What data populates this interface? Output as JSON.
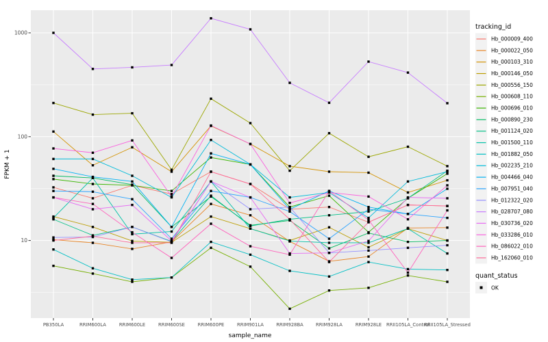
{
  "figure": {
    "y_axis": {
      "label": "FPKM + 1"
    },
    "x_axis": {
      "label": "sample_name"
    },
    "legend": {
      "tracking_title": "tracking_id",
      "quant_title": "quant_status",
      "quant_ok_label": "OK"
    }
  },
  "chart_data": {
    "type": "line",
    "title": "",
    "xlabel": "sample_name",
    "ylabel": "FPKM + 1",
    "y_scale": "log10",
    "ylim": [
      1.8,
      1700
    ],
    "y_ticks": [
      1000,
      100,
      10
    ],
    "y_minor_ticks": [
      316.23,
      31.623,
      3.1623
    ],
    "grid": true,
    "legend_position": "right",
    "panel_background": "#EBEBEB",
    "gridline_color": "#FFFFFF",
    "point_color": "#000000",
    "tick_label_color": "#4D4D4D",
    "categories": [
      "PB350LA",
      "RRIM600LA",
      "RRIM600LE",
      "RRIM600SE",
      "RRIM600PE",
      "RRIM901LA",
      "RRIM928BA",
      "RRIM928LA",
      "RRIM928LE",
      "RRII105LA_Control",
      "RRII105LA_Stressed"
    ],
    "quant_status": {
      "items": [
        "OK"
      ]
    },
    "series": [
      {
        "name": "Hb_000009_400",
        "color": "#F8766D",
        "values": [
          32.5,
          25.5,
          34,
          28,
          46,
          35,
          20,
          21,
          15,
          22,
          21.5
        ]
      },
      {
        "name": "Hb_000022_050",
        "color": "#E88526",
        "values": [
          10.2,
          9.5,
          8.3,
          9.7,
          22.5,
          17.5,
          9.8,
          6.3,
          7.0,
          13.2,
          13.3
        ]
      },
      {
        "name": "Hb_000103_310",
        "color": "#D39200",
        "values": [
          112,
          53,
          79,
          46,
          127,
          85,
          52,
          46,
          45,
          29,
          38
        ]
      },
      {
        "name": "Hb_000146_050",
        "color": "#BB9D00",
        "values": [
          17,
          13.5,
          9.9,
          9.6,
          17,
          13,
          10,
          13.4,
          8.6,
          13,
          10
        ]
      },
      {
        "name": "Hb_000556_150",
        "color": "#9CA700",
        "values": [
          211,
          163,
          168,
          48,
          232,
          135,
          47,
          108,
          64,
          80,
          52
        ]
      },
      {
        "name": "Hb_000608_110",
        "color": "#75AF00",
        "values": [
          5.7,
          4.8,
          4.0,
          4.4,
          8.5,
          5.6,
          2.2,
          3.3,
          3.5,
          4.6,
          4.0
        ]
      },
      {
        "name": "Hb_000696_010",
        "color": "#39B600",
        "values": [
          39,
          35,
          34,
          30,
          63,
          54,
          21,
          27,
          12,
          25.5,
          44
        ]
      },
      {
        "name": "Hb_000890_230",
        "color": "#00BB60",
        "values": [
          42,
          40,
          34.5,
          13.5,
          26.5,
          14,
          15.6,
          8.4,
          11.8,
          9.7,
          10
        ]
      },
      {
        "name": "Hb_001124_020",
        "color": "#00BF85",
        "values": [
          16,
          11.2,
          13.5,
          9.8,
          27,
          13.8,
          16,
          17.5,
          19,
          25.5,
          47
        ]
      },
      {
        "name": "Hb_001500_110",
        "color": "#00C1A7",
        "values": [
          16.5,
          40,
          11.5,
          12.2,
          37,
          13,
          9.9,
          9.5,
          9.5,
          13,
          7.5
        ]
      },
      {
        "name": "Hb_001882_050",
        "color": "#00BFC4",
        "values": [
          8.2,
          5.4,
          4.2,
          4.4,
          9.7,
          7.3,
          5.1,
          4.5,
          6.2,
          5.3,
          5.2
        ]
      },
      {
        "name": "Hb_002235_210",
        "color": "#00BBDA",
        "values": [
          61,
          61,
          42,
          26,
          93,
          54,
          26,
          29,
          16.5,
          37,
          46
        ]
      },
      {
        "name": "Hb_004466_040",
        "color": "#00B2F3",
        "values": [
          49,
          41,
          37,
          13.5,
          69,
          54,
          20,
          30,
          21,
          18,
          31.5
        ]
      },
      {
        "name": "Hb_007951_040",
        "color": "#29A3FF",
        "values": [
          30,
          29.5,
          25,
          10.4,
          30,
          26,
          19,
          10.4,
          20,
          18,
          16.5
        ]
      },
      {
        "name": "Hb_012322_020",
        "color": "#9590FF",
        "values": [
          10.7,
          10.8,
          13.5,
          9.7,
          37,
          20,
          21,
          7.6,
          8.0,
          8.5,
          9.0
        ]
      },
      {
        "name": "Hb_028707_080",
        "color": "#C77CFF",
        "values": [
          1000,
          449,
          465,
          490,
          1380,
          1080,
          330,
          212,
          528,
          414,
          210
        ]
      },
      {
        "name": "Hb_030736_020",
        "color": "#E76BF3",
        "values": [
          26,
          20,
          22,
          9.9,
          37,
          26,
          7.5,
          7.6,
          9.9,
          26,
          25.5
        ]
      },
      {
        "name": "Hb_033286_010",
        "color": "#FA61DE",
        "values": [
          77,
          70,
          92,
          26.5,
          128,
          85,
          23,
          29,
          26.5,
          16,
          34
        ]
      },
      {
        "name": "Hb_086022_010",
        "color": "#FF62BC",
        "values": [
          26,
          22.5,
          12,
          6.8,
          14.5,
          8.8,
          7.3,
          30,
          15.8,
          4.9,
          19.5
        ]
      },
      {
        "name": "Hb_162060_010",
        "color": "#FF6A98",
        "values": [
          10,
          11,
          9.5,
          9.5,
          46,
          35,
          16,
          6.2,
          15,
          22,
          21.5
        ]
      }
    ]
  }
}
